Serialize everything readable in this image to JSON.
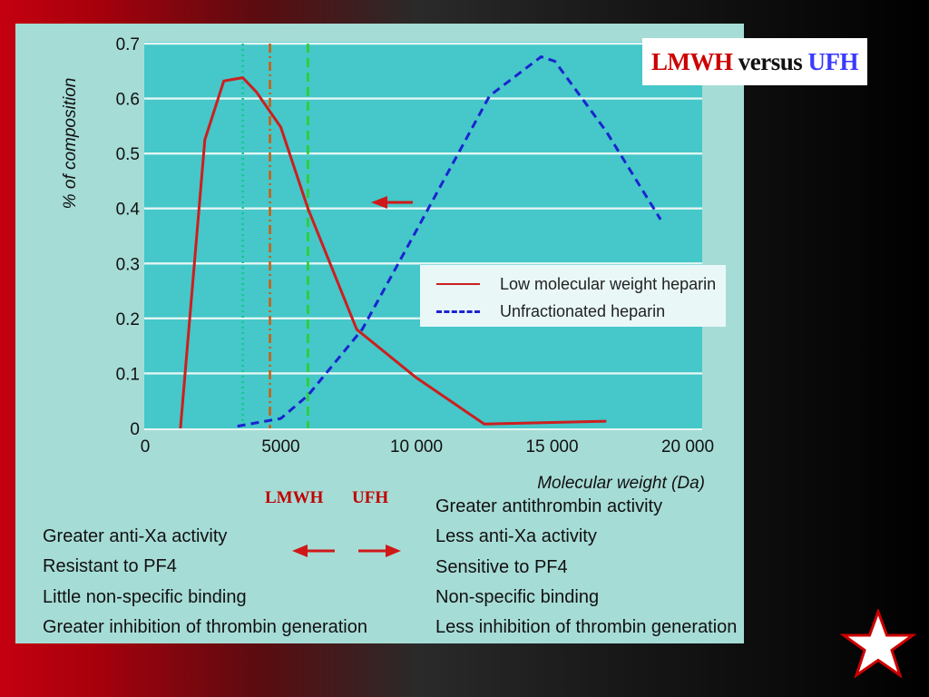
{
  "title": {
    "part1": "LMWH",
    "part2": " versus ",
    "part3": "UFH",
    "color1": "#cc0000",
    "color2": "#111111",
    "color3": "#3a3aff"
  },
  "chart_data": {
    "type": "line",
    "xlabel": "Molecular weight (Da)",
    "ylabel": "% of composition",
    "xlim": [
      0,
      20000
    ],
    "ylim": [
      0,
      0.7
    ],
    "x_ticks": [
      0,
      5000,
      10000,
      15000,
      20000
    ],
    "x_tick_labels": [
      "0",
      "5000",
      "10 000",
      "15 000",
      "20 000"
    ],
    "y_ticks": [
      0,
      0.1,
      0.2,
      0.3,
      0.4,
      0.5,
      0.6,
      0.7
    ],
    "y_tick_labels": [
      "0",
      "0.1",
      "0.2",
      "0.3",
      "0.4",
      "0.5",
      "0.6",
      "0.7"
    ],
    "grid": "horizontal",
    "legend_position": "center-right",
    "series": [
      {
        "name": "Low molecular weight heparin",
        "color": "#cc1f1f",
        "style": "solid",
        "points": [
          [
            1300,
            0
          ],
          [
            2200,
            0.525
          ],
          [
            2900,
            0.632
          ],
          [
            3600,
            0.638
          ],
          [
            4100,
            0.612
          ],
          [
            5000,
            0.548
          ],
          [
            6000,
            0.4
          ],
          [
            7800,
            0.18
          ],
          [
            10000,
            0.092
          ],
          [
            12500,
            0.008
          ],
          [
            17000,
            0.013
          ]
        ]
      },
      {
        "name": "Unfractionated heparin",
        "color": "#1a24d0",
        "style": "dashed",
        "points": [
          [
            3400,
            0.004
          ],
          [
            5000,
            0.018
          ],
          [
            6000,
            0.06
          ],
          [
            8000,
            0.18
          ],
          [
            10000,
            0.36
          ],
          [
            12700,
            0.605
          ],
          [
            14600,
            0.676
          ],
          [
            15100,
            0.668
          ],
          [
            17000,
            0.54
          ],
          [
            19000,
            0.38
          ]
        ]
      }
    ],
    "reference_lines": [
      {
        "x": 3600,
        "color": "#10c890",
        "style": "dotted"
      },
      {
        "x": 4600,
        "color": "#cc5f10",
        "style": "dashdot"
      },
      {
        "x": 6000,
        "color": "#28d22a",
        "style": "dashed"
      }
    ],
    "annotations": [
      {
        "type": "arrow",
        "direction": "left",
        "color": "#d01818"
      }
    ]
  },
  "labels": {
    "lmwh": "LMWH",
    "ufh": "UFH"
  },
  "lmwh_properties": [
    "Greater anti-Xa activity",
    "Resistant to PF4",
    "Little non-specific binding",
    "Greater inhibition of thrombin generation"
  ],
  "ufh_properties": [
    "Greater antithrombin activity",
    "Less anti-Xa activity",
    "Sensitive to PF4",
    "Non-specific binding",
    "Less inhibition of thrombin generation"
  ],
  "colors": {
    "panel": "#a6dcd6",
    "plot": "#46c7c9",
    "accent": "#cc0000",
    "star": "#ffffff"
  },
  "icons": {
    "star": "star-icon",
    "arrow_left": "arrow-left-icon",
    "arrow_right": "arrow-right-icon"
  }
}
